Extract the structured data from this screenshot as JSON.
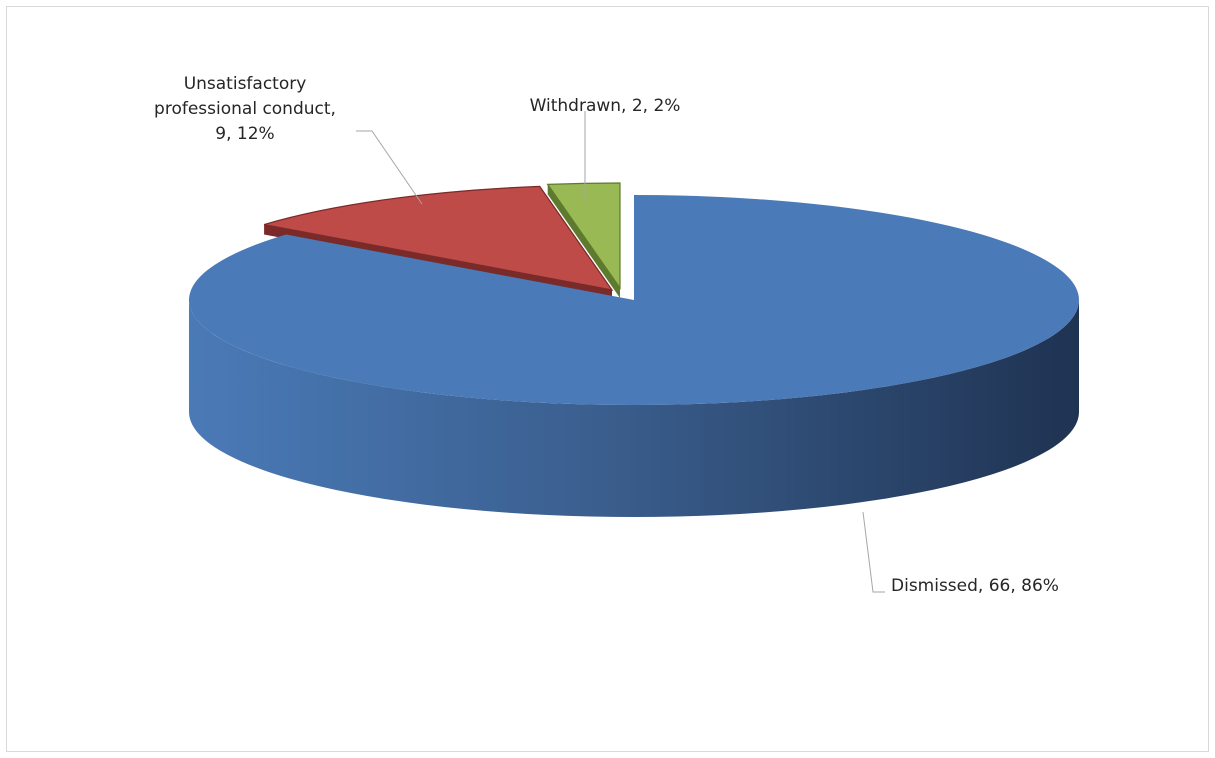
{
  "chart_data": {
    "type": "pie",
    "title": "",
    "categories": [
      "Dismissed",
      "Unsatisfactory professional conduct",
      "Withdrawn"
    ],
    "values": [
      66,
      9,
      2
    ],
    "percents": [
      86,
      12,
      2
    ],
    "labels": [
      [
        "Dismissed, 66, 86%"
      ],
      [
        "Unsatisfactory",
        "professional conduct,",
        "9, 12%"
      ],
      [
        "Withdrawn, 2, 2%"
      ]
    ],
    "colors": [
      "#4a7ab7",
      "#be4b48",
      "#98b954"
    ],
    "side_colors": [
      "#2b4a74",
      "#7a2a28",
      "#5e7a2e"
    ],
    "legend": "none",
    "style": "3d-exploded"
  }
}
